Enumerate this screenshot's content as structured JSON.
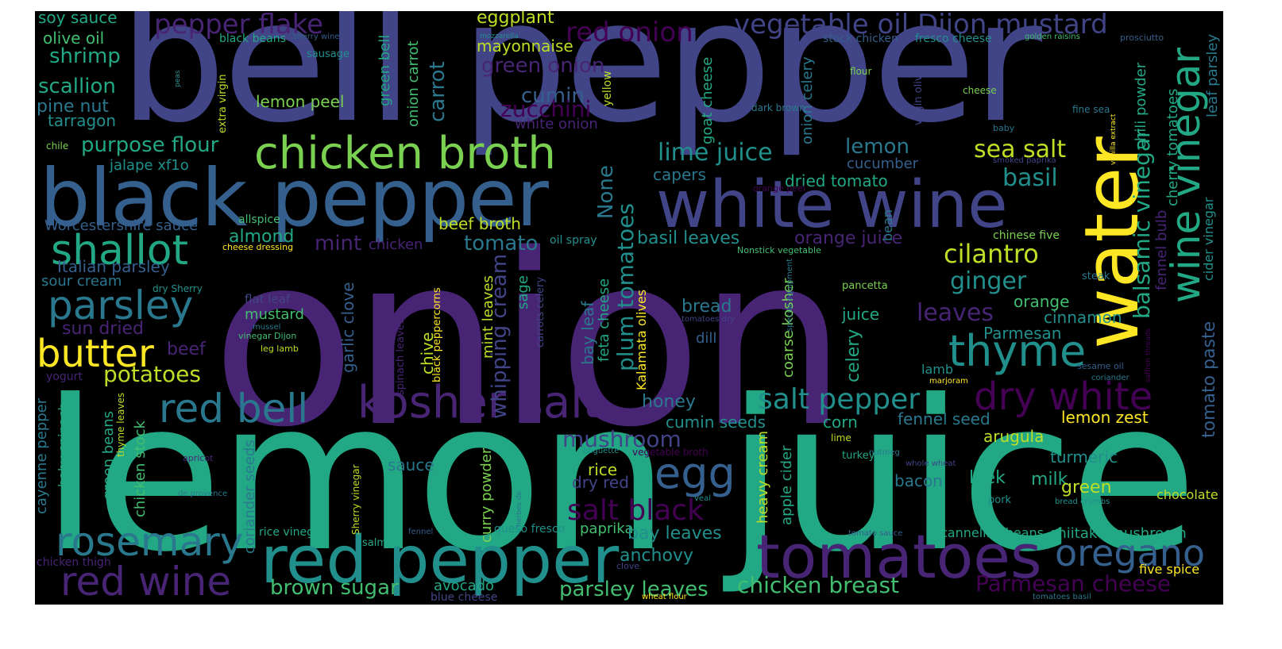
{
  "palette": {
    "c0": "#440154",
    "c1": "#482475",
    "c2": "#414487",
    "c3": "#355f8d",
    "c4": "#2a788e",
    "c5": "#21908d",
    "c6": "#22a884",
    "c7": "#42be71",
    "c8": "#7ad151",
    "c9": "#bddf26",
    "c10": "#fde725"
  },
  "words": [
    {
      "text": "onion",
      "color": "c1"
    },
    {
      "text": "bell pepper",
      "color": "c2"
    },
    {
      "text": "lemon juice",
      "color": "c6"
    },
    {
      "text": "black pepper",
      "color": "c3"
    },
    {
      "text": "white wine",
      "color": "c2"
    },
    {
      "text": "water",
      "color": "c10"
    },
    {
      "text": "red pepper",
      "color": "c5"
    },
    {
      "text": "tomatoes",
      "color": "c1"
    },
    {
      "text": "chicken broth",
      "color": "c8"
    },
    {
      "text": "kosher salt",
      "color": "c1"
    },
    {
      "text": "shallot",
      "color": "c6"
    },
    {
      "text": "wine vinegar",
      "color": "c6"
    },
    {
      "text": "red bell",
      "color": "c4"
    },
    {
      "text": "dry white",
      "color": "c0"
    },
    {
      "text": "thyme",
      "color": "c5"
    },
    {
      "text": "parsley",
      "color": "c4"
    },
    {
      "text": "butter",
      "color": "c10"
    },
    {
      "text": "rosemary",
      "color": "c4"
    },
    {
      "text": "red wine",
      "color": "c1"
    },
    {
      "text": "oregano",
      "color": "c3"
    },
    {
      "text": "egg",
      "color": "c3"
    },
    {
      "text": "salt pepper",
      "color": "c5"
    },
    {
      "text": "vegetable oil Dijon mustard",
      "color": "c2"
    },
    {
      "text": "pepper flake",
      "color": "c1"
    },
    {
      "text": "red onion",
      "color": "c0"
    },
    {
      "text": "salt black",
      "color": "c0"
    },
    {
      "text": "sea salt",
      "color": "c9"
    },
    {
      "text": "lime juice",
      "color": "c5"
    },
    {
      "text": "cilantro",
      "color": "c9"
    },
    {
      "text": "ginger",
      "color": "c5"
    },
    {
      "text": "basil",
      "color": "c5"
    },
    {
      "text": "lemon",
      "color": "c4"
    },
    {
      "text": "cumin",
      "color": "c3"
    },
    {
      "text": "carrot",
      "color": "c4"
    },
    {
      "text": "zucchini",
      "color": "c0"
    },
    {
      "text": "mushroom",
      "color": "c2"
    },
    {
      "text": "potatoes",
      "color": "c9"
    },
    {
      "text": "purpose flour",
      "color": "c6"
    },
    {
      "text": "green onion",
      "color": "c1"
    },
    {
      "text": "shrimp",
      "color": "c6"
    },
    {
      "text": "scallion",
      "color": "c6"
    },
    {
      "text": "balsamic vinegar",
      "color": "c6"
    },
    {
      "text": "Parmesan cheese",
      "color": "c0"
    },
    {
      "text": "chicken breast",
      "color": "c7"
    },
    {
      "text": "parsley leaves",
      "color": "c7"
    },
    {
      "text": "brown sugar",
      "color": "c7"
    },
    {
      "text": "plum tomatoes",
      "color": "c5"
    },
    {
      "text": "whipping cream",
      "color": "c2"
    },
    {
      "text": "tomato paste",
      "color": "c3"
    },
    {
      "text": "dried tomato",
      "color": "c6"
    },
    {
      "text": "basil leaves",
      "color": "c5"
    },
    {
      "text": "orange juice",
      "color": "c1"
    },
    {
      "text": "None",
      "color": "c4"
    },
    {
      "text": "tomato",
      "color": "c4"
    },
    {
      "text": "beef broth",
      "color": "c9"
    },
    {
      "text": "mint",
      "color": "c1"
    },
    {
      "text": "almond",
      "color": "c6"
    },
    {
      "text": "mayonnaise",
      "color": "c9"
    },
    {
      "text": "eggplant",
      "color": "c9"
    },
    {
      "text": "lemon peel",
      "color": "c8"
    },
    {
      "text": "white onion",
      "color": "c1"
    },
    {
      "text": "capers",
      "color": "c4"
    },
    {
      "text": "cucumber",
      "color": "c3"
    },
    {
      "text": "leaves",
      "color": "c1"
    },
    {
      "text": "orange",
      "color": "c7"
    },
    {
      "text": "Parmesan",
      "color": "c5"
    },
    {
      "text": "cinnamon",
      "color": "c5"
    },
    {
      "text": "juice",
      "color": "c6"
    },
    {
      "text": "bread",
      "color": "c4"
    },
    {
      "text": "honey",
      "color": "c4"
    },
    {
      "text": "cumin seeds",
      "color": "c5"
    },
    {
      "text": "fennel seed",
      "color": "c4"
    },
    {
      "text": "lemon zest",
      "color": "c10"
    },
    {
      "text": "corn",
      "color": "c6"
    },
    {
      "text": "arugula",
      "color": "c9"
    },
    {
      "text": "turmeric",
      "color": "c5"
    },
    {
      "text": "leek",
      "color": "c6"
    },
    {
      "text": "milk",
      "color": "c6"
    },
    {
      "text": "green",
      "color": "c9"
    },
    {
      "text": "chocolate",
      "color": "c9"
    },
    {
      "text": "bacon",
      "color": "c4"
    },
    {
      "text": "rice",
      "color": "c9"
    },
    {
      "text": "dry red",
      "color": "c2"
    },
    {
      "text": "paprika",
      "color": "c7"
    },
    {
      "text": "bay leaves",
      "color": "c5"
    },
    {
      "text": "anchovy",
      "color": "c5"
    },
    {
      "text": "shiitake mushroom",
      "color": "c6"
    },
    {
      "text": "five spice",
      "color": "c10"
    },
    {
      "text": "cannellini beans",
      "color": "c6"
    },
    {
      "text": "sauce",
      "color": "c4"
    },
    {
      "text": "avocado",
      "color": "c6"
    },
    {
      "text": "beef",
      "color": "c1"
    },
    {
      "text": "sun dried",
      "color": "c1"
    },
    {
      "text": "sour cream",
      "color": "c4"
    },
    {
      "text": "Italian parsley",
      "color": "c3"
    },
    {
      "text": "Worcestershire sauce",
      "color": "c3"
    },
    {
      "text": "jalape xf1o",
      "color": "c5"
    },
    {
      "text": "tarragon",
      "color": "c5"
    },
    {
      "text": "pine nut",
      "color": "c4"
    },
    {
      "text": "olive oil",
      "color": "c7"
    },
    {
      "text": "soy sauce",
      "color": "c6"
    },
    {
      "text": "mustard",
      "color": "c7"
    },
    {
      "text": "dill",
      "color": "c3"
    },
    {
      "text": "lamb",
      "color": "c5"
    },
    {
      "text": "celery",
      "color": "c6"
    },
    {
      "text": "garlic clove",
      "color": "c3"
    },
    {
      "text": "chive",
      "color": "c9"
    },
    {
      "text": "sage",
      "color": "c6"
    },
    {
      "text": "mint leaves",
      "color": "c9"
    },
    {
      "text": "bay leaf",
      "color": "c4"
    },
    {
      "text": "feta cheese",
      "color": "c6"
    },
    {
      "text": "Kalamata olives",
      "color": "c10"
    },
    {
      "text": "coarse kosher",
      "color": "c8"
    },
    {
      "text": "heavy cream",
      "color": "c9"
    },
    {
      "text": "apple cider",
      "color": "c6"
    },
    {
      "text": "curry powder",
      "color": "c8"
    },
    {
      "text": "coriander seeds",
      "color": "c4"
    },
    {
      "text": "chicken stock",
      "color": "c7"
    },
    {
      "text": "green beans",
      "color": "c6"
    },
    {
      "text": "baby spinach",
      "color": "c6"
    },
    {
      "text": "cayenne pepper",
      "color": "c4"
    },
    {
      "text": "cider vinegar",
      "color": "c5"
    },
    {
      "text": "cherry tomatoes",
      "color": "c6"
    },
    {
      "text": "fennel bulb",
      "color": "c1"
    },
    {
      "text": "chili powder",
      "color": "c6"
    },
    {
      "text": "leaf parsley",
      "color": "c4"
    },
    {
      "text": "goat cheese",
      "color": "c6"
    },
    {
      "text": "onion celery",
      "color": "c4"
    },
    {
      "text": "green bell",
      "color": "c6"
    },
    {
      "text": "onion carrot",
      "color": "c7"
    },
    {
      "text": "chicken",
      "color": "c1"
    },
    {
      "text": "oil spray",
      "color": "c5"
    },
    {
      "text": "allspice",
      "color": "c7"
    },
    {
      "text": "bean",
      "color": "c4"
    },
    {
      "text": "chinese five",
      "color": "c8"
    },
    {
      "text": "stock chicken",
      "color": "c3"
    },
    {
      "text": "fresco cheese",
      "color": "c5"
    },
    {
      "text": "golden raisins",
      "color": "c7"
    },
    {
      "text": "prosciutto",
      "color": "c3"
    },
    {
      "text": "mozzarella",
      "color": "c5"
    },
    {
      "text": "black beans",
      "color": "c6"
    },
    {
      "text": "Sherry wine",
      "color": "c3"
    },
    {
      "text": "sausage",
      "color": "c5"
    },
    {
      "text": "extra virgin",
      "color": "c9"
    },
    {
      "text": "peas",
      "color": "c5"
    },
    {
      "text": "yellow",
      "color": "c9"
    },
    {
      "text": "chile",
      "color": "c8"
    },
    {
      "text": "flour",
      "color": "c8"
    },
    {
      "text": "virgin olive",
      "color": "c2"
    },
    {
      "text": "cheese",
      "color": "c8"
    },
    {
      "text": "fine sea",
      "color": "c4"
    },
    {
      "text": "dark brown",
      "color": "c4"
    },
    {
      "text": "baby",
      "color": "c4"
    },
    {
      "text": "vanilla extract",
      "color": "c10"
    },
    {
      "text": "smoked paprika",
      "color": "c2"
    },
    {
      "text": "orange peel",
      "color": "c0"
    },
    {
      "text": "cheese dressing",
      "color": "c10"
    },
    {
      "text": "Nonstick vegetable",
      "color": "c7"
    },
    {
      "text": "dry Sherry",
      "color": "c5"
    },
    {
      "text": "flat leaf",
      "color": "c2"
    },
    {
      "text": "mussel",
      "color": "c4"
    },
    {
      "text": "vinegar Dijon",
      "color": "c7"
    },
    {
      "text": "leg lamb",
      "color": "c9"
    },
    {
      "text": "yogurt",
      "color": "c1"
    },
    {
      "text": "spinach leaves",
      "color": "c1"
    },
    {
      "text": "black peppercorns",
      "color": "c10"
    },
    {
      "text": "carrots celery",
      "color": "c2"
    },
    {
      "text": "thyme leaves",
      "color": "c9"
    },
    {
      "text": "pancetta",
      "color": "c8"
    },
    {
      "text": "steak",
      "color": "c4"
    },
    {
      "text": "tomatoes dry",
      "color": "c2"
    },
    {
      "text": "special equipment",
      "color": "c4"
    },
    {
      "text": "saffron threads",
      "color": "c0"
    },
    {
      "text": "sesame oil",
      "color": "c3"
    },
    {
      "text": "coriander",
      "color": "c4"
    },
    {
      "text": "marjoram",
      "color": "c10"
    },
    {
      "text": "baguette",
      "color": "c5"
    },
    {
      "text": "vegetable broth",
      "color": "c0"
    },
    {
      "text": "nutmeg",
      "color": "c4"
    },
    {
      "text": "lime",
      "color": "c9"
    },
    {
      "text": "turkey",
      "color": "c6"
    },
    {
      "text": "whole wheat",
      "color": "c2"
    },
    {
      "text": "apricot",
      "color": "c1"
    },
    {
      "text": "de provence",
      "color": "c4"
    },
    {
      "text": "herbes de",
      "color": "c4"
    },
    {
      "text": "Sherry vinegar",
      "color": "c9"
    },
    {
      "text": "veal",
      "color": "c5"
    },
    {
      "text": "queso fresco",
      "color": "c5"
    },
    {
      "text": "rice vinegar",
      "color": "c6"
    },
    {
      "text": "fennel",
      "color": "c3"
    },
    {
      "text": "salmon",
      "color": "c6"
    },
    {
      "text": "tomato sauce",
      "color": "c3"
    },
    {
      "text": "pork",
      "color": "c5"
    },
    {
      "text": "bread crumbs",
      "color": "c5"
    },
    {
      "text": "chicken thigh",
      "color": "c1"
    },
    {
      "text": "clove",
      "color": "c2"
    },
    {
      "text": "blue cheese",
      "color": "c2"
    },
    {
      "text": "wheat flour",
      "color": "c10"
    },
    {
      "text": "tomatoes basil",
      "color": "c4"
    }
  ]
}
